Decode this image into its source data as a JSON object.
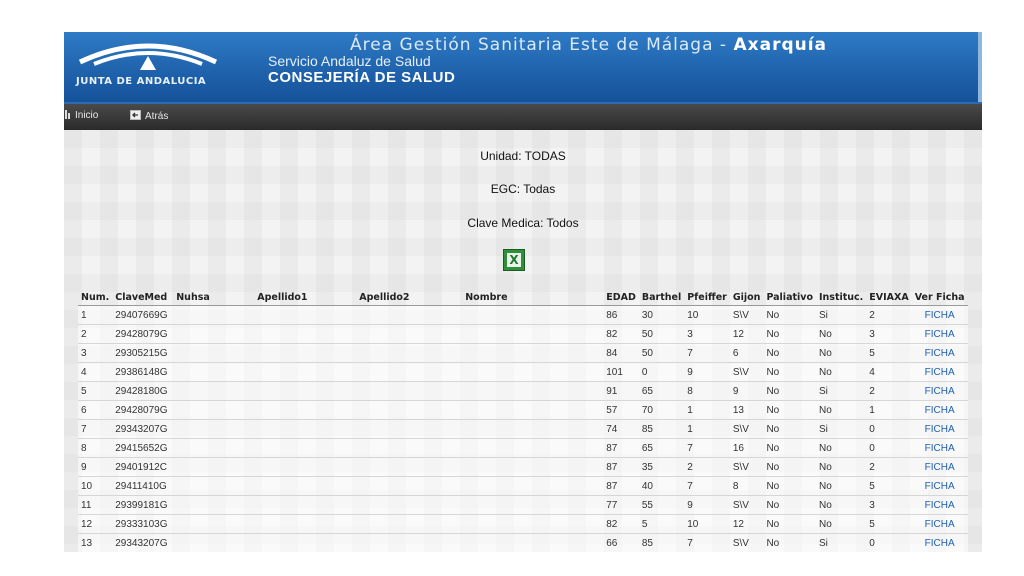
{
  "header": {
    "logo_text": "JUNTA DE ANDALUCIA",
    "title_prefix": "Área Gestión Sanitaria Este de Málaga - ",
    "title_bold": "Axarquía",
    "subtitle": "Servicio Andaluz de Salud",
    "department": "CONSEJERÍA DE SALUD"
  },
  "nav": {
    "inicio": "Inicio",
    "atras": "Atrás"
  },
  "filters": {
    "unidad": "Unidad: TODAS",
    "egc": "EGC: Todas",
    "clave_medica": "Clave Medica: Todos"
  },
  "table": {
    "columns": [
      "Num.",
      "ClaveMed",
      "Nuhsa",
      "Apellido1",
      "Apellido2",
      "Nombre",
      "EDAD",
      "Barthel",
      "Pfeiffer",
      "Gijon",
      "Paliativo",
      "Instituc.",
      "EVIAXA",
      "Ver Ficha"
    ],
    "rows": [
      {
        "num": "1",
        "clave": "29407669G",
        "edad": "86",
        "barthel": "30",
        "pfeiffer": "10",
        "gijon": "S\\V",
        "paliativo": "No",
        "instituc": "Si",
        "eviaxa": "2",
        "ficha": "FICHA"
      },
      {
        "num": "2",
        "clave": "29428079G",
        "edad": "82",
        "barthel": "50",
        "pfeiffer": "3",
        "gijon": "12",
        "paliativo": "No",
        "instituc": "No",
        "eviaxa": "3",
        "ficha": "FICHA"
      },
      {
        "num": "3",
        "clave": "29305215G",
        "edad": "84",
        "barthel": "50",
        "pfeiffer": "7",
        "gijon": "6",
        "paliativo": "No",
        "instituc": "No",
        "eviaxa": "5",
        "ficha": "FICHA"
      },
      {
        "num": "4",
        "clave": "29386148G",
        "edad": "101",
        "barthel": "0",
        "pfeiffer": "9",
        "gijon": "S\\V",
        "paliativo": "No",
        "instituc": "No",
        "eviaxa": "4",
        "ficha": "FICHA"
      },
      {
        "num": "5",
        "clave": "29428180G",
        "edad": "91",
        "barthel": "65",
        "pfeiffer": "8",
        "gijon": "9",
        "paliativo": "No",
        "instituc": "Si",
        "eviaxa": "2",
        "ficha": "FICHA"
      },
      {
        "num": "6",
        "clave": "29428079G",
        "edad": "57",
        "barthel": "70",
        "pfeiffer": "1",
        "gijon": "13",
        "paliativo": "No",
        "instituc": "No",
        "eviaxa": "1",
        "ficha": "FICHA"
      },
      {
        "num": "7",
        "clave": "29343207G",
        "edad": "74",
        "barthel": "85",
        "pfeiffer": "1",
        "gijon": "S\\V",
        "paliativo": "No",
        "instituc": "Si",
        "eviaxa": "0",
        "ficha": "FICHA"
      },
      {
        "num": "8",
        "clave": "29415652G",
        "edad": "87",
        "barthel": "65",
        "pfeiffer": "7",
        "gijon": "16",
        "paliativo": "No",
        "instituc": "No",
        "eviaxa": "0",
        "ficha": "FICHA"
      },
      {
        "num": "9",
        "clave": "29401912C",
        "edad": "87",
        "barthel": "35",
        "pfeiffer": "2",
        "gijon": "S\\V",
        "paliativo": "No",
        "instituc": "No",
        "eviaxa": "2",
        "ficha": "FICHA"
      },
      {
        "num": "10",
        "clave": "29411410G",
        "edad": "87",
        "barthel": "40",
        "pfeiffer": "7",
        "gijon": "8",
        "paliativo": "No",
        "instituc": "No",
        "eviaxa": "5",
        "ficha": "FICHA"
      },
      {
        "num": "11",
        "clave": "29399181G",
        "edad": "77",
        "barthel": "55",
        "pfeiffer": "9",
        "gijon": "S\\V",
        "paliativo": "No",
        "instituc": "No",
        "eviaxa": "3",
        "ficha": "FICHA"
      },
      {
        "num": "12",
        "clave": "29333103G",
        "edad": "82",
        "barthel": "5",
        "pfeiffer": "10",
        "gijon": "12",
        "paliativo": "No",
        "instituc": "No",
        "eviaxa": "5",
        "ficha": "FICHA"
      },
      {
        "num": "13",
        "clave": "29343207G",
        "edad": "66",
        "barthel": "85",
        "pfeiffer": "7",
        "gijon": "S\\V",
        "paliativo": "No",
        "instituc": "Si",
        "eviaxa": "0",
        "ficha": "FICHA"
      }
    ]
  }
}
